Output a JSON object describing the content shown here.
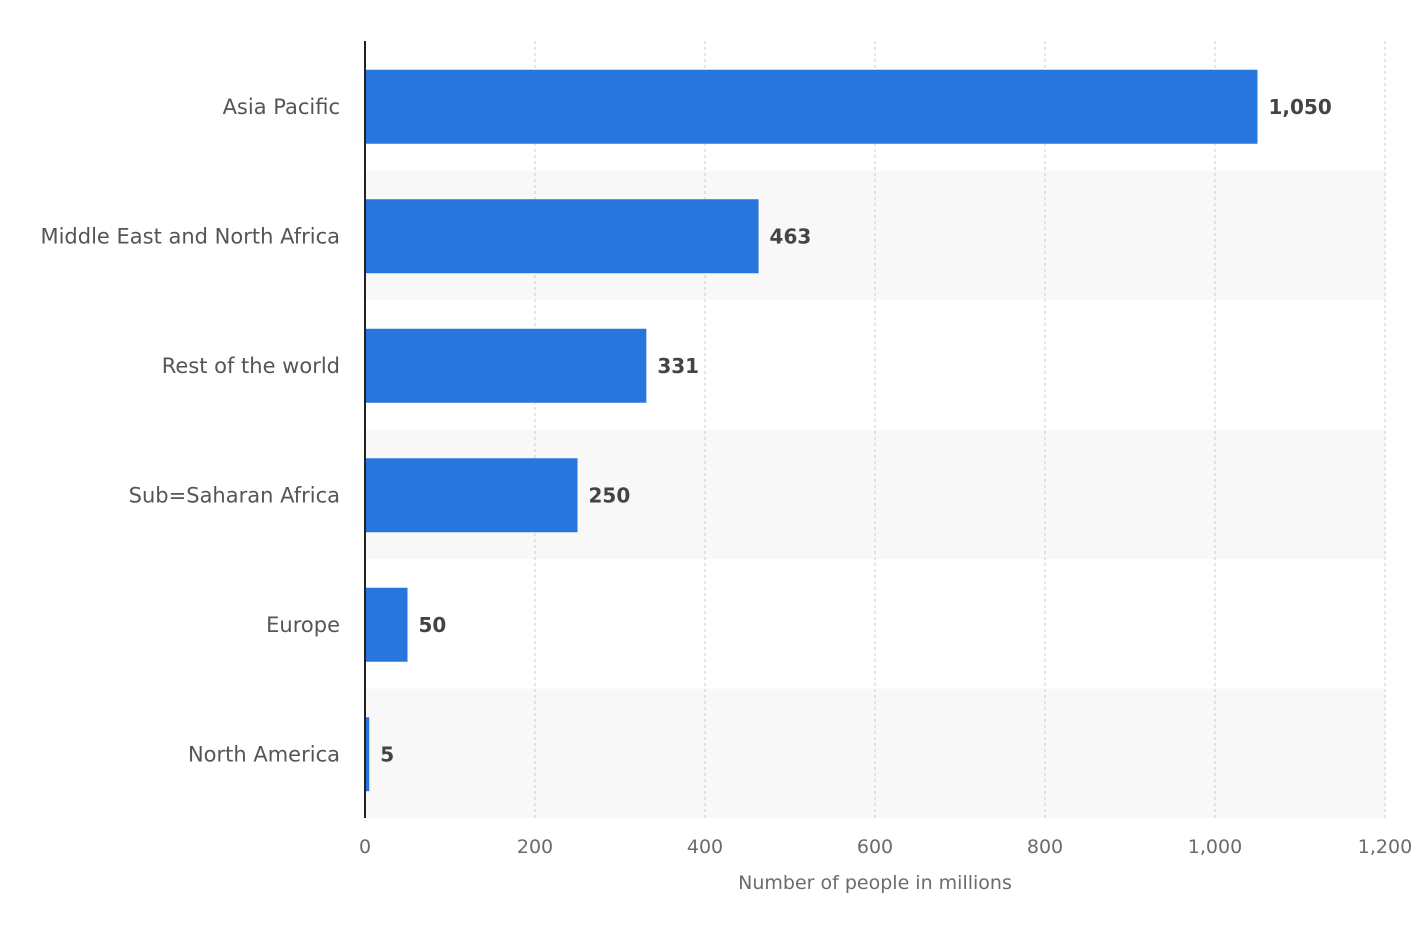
{
  "chart_data": {
    "type": "bar",
    "orientation": "horizontal",
    "categories": [
      "Asia Pacific",
      "Middle East and North Africa",
      "Rest of the world",
      "Sub=Saharan Africa",
      "Europe",
      "North America"
    ],
    "values": [
      1050,
      463,
      331,
      250,
      50,
      5
    ],
    "value_labels": [
      "1,050",
      "463",
      "331",
      "250",
      "50",
      "5"
    ],
    "xlabel": "Number of people in millions",
    "xlim": [
      0,
      1200
    ],
    "x_ticks": [
      0,
      200,
      400,
      600,
      800,
      1000,
      1200
    ],
    "x_tick_labels": [
      "0",
      "200",
      "400",
      "600",
      "800",
      "1,000",
      "1,200"
    ],
    "grid": "vertical dashed",
    "legend": "none",
    "colors": {
      "bar": "#2876dd",
      "band": "#f8f8f8",
      "grid": "#cccccc",
      "axis": "#222222"
    }
  }
}
